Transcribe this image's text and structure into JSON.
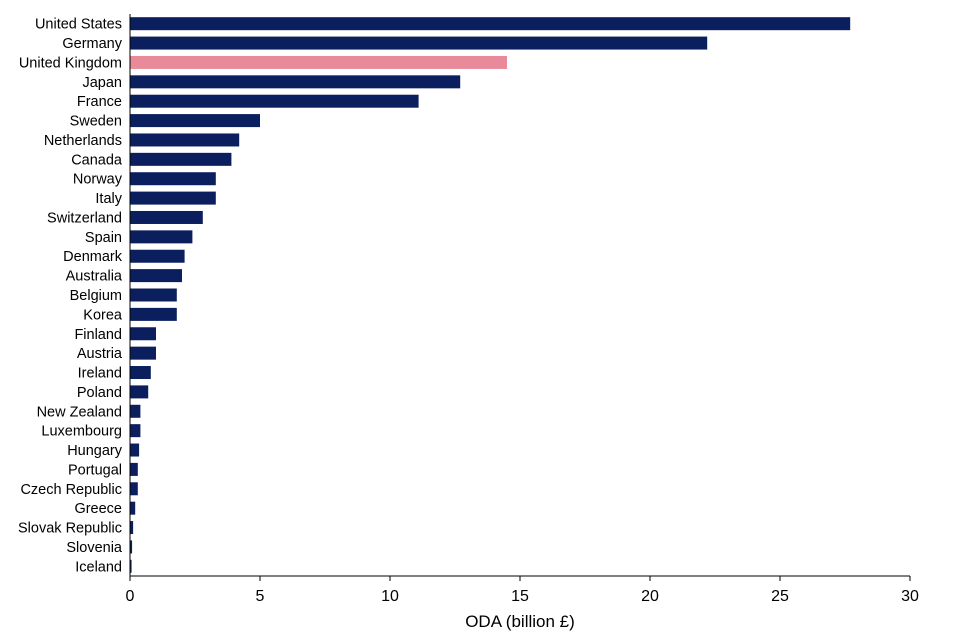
{
  "chart_data": {
    "type": "bar",
    "orientation": "horizontal",
    "title": "",
    "xlabel": "ODA (billion £)",
    "ylabel": "",
    "xlim": [
      0,
      30
    ],
    "xticks": [
      0,
      5,
      10,
      15,
      20,
      25,
      30
    ],
    "grid": false,
    "legend": "none",
    "colors": {
      "default": "#0b1f5e",
      "highlight": "#e98a9a",
      "axis": "#000000"
    },
    "highlight_category": "United Kingdom",
    "categories": [
      "United States",
      "Germany",
      "United Kingdom",
      "Japan",
      "France",
      "Sweden",
      "Netherlands",
      "Canada",
      "Norway",
      "Italy",
      "Switzerland",
      "Spain",
      "Denmark",
      "Australia",
      "Belgium",
      "Korea",
      "Finland",
      "Austria",
      "Ireland",
      "Poland",
      "New Zealand",
      "Luxembourg",
      "Hungary",
      "Portugal",
      "Czech Republic",
      "Greece",
      "Slovak Republic",
      "Slovenia",
      "Iceland"
    ],
    "values": [
      27.7,
      22.2,
      14.5,
      12.7,
      11.1,
      5.0,
      4.2,
      3.9,
      3.3,
      3.3,
      2.8,
      2.4,
      2.1,
      2.0,
      1.8,
      1.8,
      1.0,
      1.0,
      0.8,
      0.7,
      0.4,
      0.4,
      0.35,
      0.3,
      0.3,
      0.2,
      0.12,
      0.08,
      0.06
    ]
  }
}
